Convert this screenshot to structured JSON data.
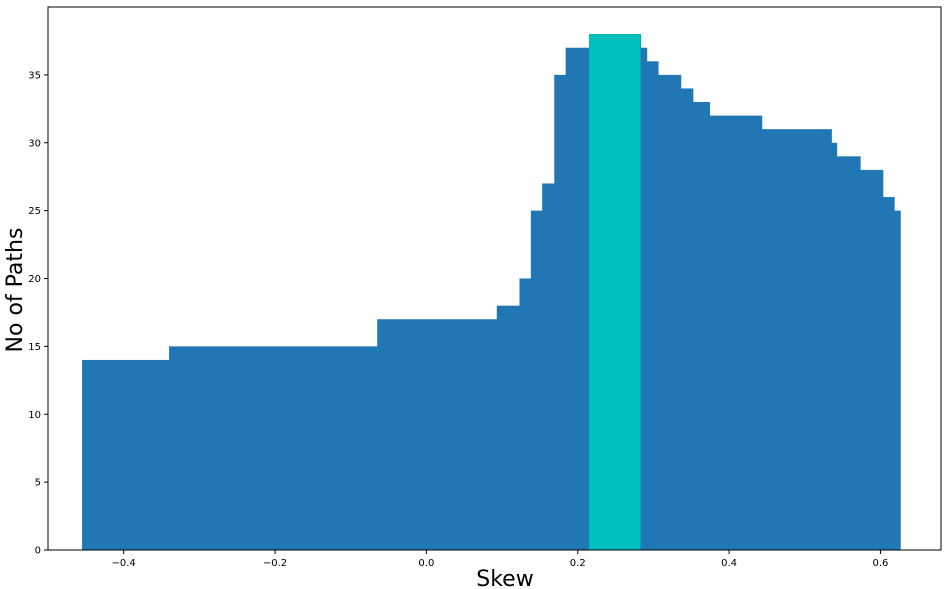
{
  "chart_data": {
    "type": "step-area",
    "title": "",
    "xlabel": "Skew",
    "ylabel": "No of Paths",
    "xlim": [
      -0.5,
      0.68
    ],
    "ylim": [
      0,
      40
    ],
    "xticks": [
      -0.4,
      -0.2,
      0.0,
      0.2,
      0.4,
      0.6
    ],
    "xtick_labels": [
      "−0.4",
      "−0.2",
      "0.0",
      "0.2",
      "0.4",
      "0.6"
    ],
    "yticks": [
      0,
      5,
      10,
      15,
      20,
      25,
      30,
      35
    ],
    "ytick_labels": [
      "0",
      "5",
      "10",
      "15",
      "20",
      "25",
      "30",
      "35"
    ],
    "grid": false,
    "legend": "none",
    "series_color": "#2077b4",
    "highlight_color": "#00bfbf",
    "steps": [
      {
        "x0": -0.455,
        "x1": -0.34,
        "y": 14
      },
      {
        "x0": -0.34,
        "x1": -0.065,
        "y": 15
      },
      {
        "x0": -0.065,
        "x1": 0.093,
        "y": 17
      },
      {
        "x0": 0.093,
        "x1": 0.123,
        "y": 18
      },
      {
        "x0": 0.123,
        "x1": 0.138,
        "y": 20
      },
      {
        "x0": 0.138,
        "x1": 0.153,
        "y": 25
      },
      {
        "x0": 0.153,
        "x1": 0.169,
        "y": 27
      },
      {
        "x0": 0.169,
        "x1": 0.184,
        "y": 35
      },
      {
        "x0": 0.184,
        "x1": 0.215,
        "y": 37
      },
      {
        "x0": 0.215,
        "x1": 0.283,
        "y": 38
      },
      {
        "x0": 0.283,
        "x1": 0.291,
        "y": 37
      },
      {
        "x0": 0.291,
        "x1": 0.306,
        "y": 36
      },
      {
        "x0": 0.306,
        "x1": 0.336,
        "y": 35
      },
      {
        "x0": 0.336,
        "x1": 0.352,
        "y": 34
      },
      {
        "x0": 0.352,
        "x1": 0.374,
        "y": 33
      },
      {
        "x0": 0.374,
        "x1": 0.443,
        "y": 32
      },
      {
        "x0": 0.443,
        "x1": 0.535,
        "y": 31
      },
      {
        "x0": 0.535,
        "x1": 0.542,
        "y": 30
      },
      {
        "x0": 0.542,
        "x1": 0.573,
        "y": 29
      },
      {
        "x0": 0.573,
        "x1": 0.603,
        "y": 28
      },
      {
        "x0": 0.603,
        "x1": 0.618,
        "y": 26
      },
      {
        "x0": 0.618,
        "x1": 0.626,
        "y": 25
      }
    ],
    "highlight": {
      "x0": 0.215,
      "x1": 0.283,
      "y": 38
    }
  }
}
